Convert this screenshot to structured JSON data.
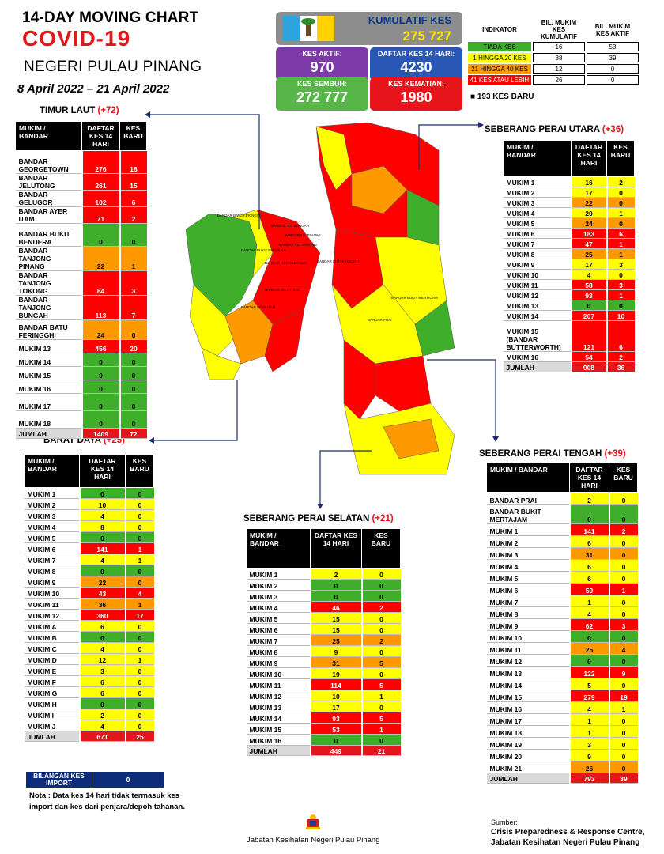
{
  "header": {
    "line1": "14-DAY MOVING CHART",
    "line2": "COVID-19",
    "line3": "NEGERI PULAU PINANG",
    "dates": "8 April 2022 – 21 April 2022"
  },
  "summary": {
    "kumulatif_label": "KUMULATIF KES",
    "kumulatif_value": "275 727",
    "aktif_label": "KES AKTIF:",
    "aktif_value": "970",
    "daftar_label": "DAFTAR KES 14 HARI:",
    "daftar_value": "4230",
    "sembuh_label": "KES SEMBUH:",
    "sembuh_value": "272 777",
    "kematian_label": "KES KEMATIAN:",
    "kematian_value": "1980"
  },
  "legend": {
    "h_indikator": "INDIKATOR",
    "h_kumulatif": "BIL. MUKIM KES KUMULATIF",
    "h_aktif": "BIL. MUKIM KES AKTIF",
    "rows": [
      {
        "label": "TIADA KES",
        "kumulatif": "16",
        "aktif": "53",
        "color": "#3fae2a"
      },
      {
        "label": "1 HINGGA 20 KES",
        "kumulatif": "38",
        "aktif": "39",
        "color": "#ffff00"
      },
      {
        "label": "21 HINGGA 40 KES",
        "kumulatif": "12",
        "aktif": "0",
        "color": "#ff9900"
      },
      {
        "label": "41 KES ATAU LEBIH",
        "kumulatif": "26",
        "aktif": "0",
        "color": "#ff0000"
      }
    ],
    "new_cases": "■  193 KES BARU"
  },
  "colors": {
    "green": "#3fae2a",
    "yellow": "#ffff00",
    "orange": "#ff9900",
    "red": "#ff0000",
    "flag_blue": "#2da4dd",
    "flag_white": "#ffffff",
    "flag_yellow": "#ffd200"
  },
  "columns": {
    "area": "MUKIM / BANDAR",
    "daftar": "DAFTAR KES 14 HARI",
    "baru": "KES BARU",
    "area_nl": "MUKIM /\nBANDAR",
    "daftar_nl": "DAFTAR\nKES 14\nHARI",
    "baru_nl": "KES\nBARU"
  },
  "map_labels": [
    "BANDAR BATU FERINGGI",
    "BANDAR TG. BUNGAH",
    "BANDAR TG. PINANG",
    "BANDAR TG. TOKONG",
    "BANDAR AYER ITAM",
    "BANDAR GEORGETOWN",
    "BANDAR JELUTONG",
    "BANDAR BUTTERWORTH",
    "BANDAR BUKIT MERTAJAM",
    "BANDAR PRAI",
    "BANDAR BUKIT BENDERA"
  ],
  "chart_data": [
    {
      "type": "table",
      "title": "TIMUR LAUT",
      "badge": "(+72)",
      "rows": [
        {
          "area": "BANDAR GEORGETOWN",
          "daftar": "276",
          "baru": "18"
        },
        {
          "area": "BANDAR JELUTONG",
          "daftar": "261",
          "baru": "15"
        },
        {
          "area": "BANDAR GELUGOR",
          "daftar": "102",
          "baru": "6"
        },
        {
          "area": "BANDAR AYER ITAM",
          "daftar": "71",
          "baru": "2"
        },
        {
          "area": "BANDAR BUKIT BENDERA",
          "daftar": "0",
          "baru": "0"
        },
        {
          "area": "BANDAR TANJONG PINANG",
          "daftar": "22",
          "baru": "1"
        },
        {
          "area": "BANDAR TANJONG TOKONG",
          "daftar": "84",
          "baru": "3"
        },
        {
          "area": "BANDAR TANJONG BUNGAH",
          "daftar": "113",
          "baru": "7"
        },
        {
          "area": "BANDAR BATU FERINGGHI",
          "daftar": "24",
          "baru": "0"
        },
        {
          "area": "MUKIM 13",
          "daftar": "456",
          "baru": "20"
        },
        {
          "area": "MUKIM 14",
          "daftar": "0",
          "baru": "0"
        },
        {
          "area": "MUKIM 15",
          "daftar": "0",
          "baru": "0"
        },
        {
          "area": "MUKIM 16",
          "daftar": "0",
          "baru": "0"
        },
        {
          "area": "MUKIM 17",
          "daftar": "0",
          "baru": "0"
        },
        {
          "area": "MUKIM 18",
          "daftar": "0",
          "baru": "0"
        }
      ],
      "total": {
        "area": "JUMLAH",
        "daftar": "1409",
        "baru": "72"
      }
    },
    {
      "type": "table",
      "title": "SEBERANG PERAI UTARA",
      "badge": "(+36)",
      "rows": [
        {
          "area": "MUKIM 1",
          "daftar": "16",
          "baru": "2"
        },
        {
          "area": "MUKIM 2",
          "daftar": "17",
          "baru": "0"
        },
        {
          "area": "MUKIM 3",
          "daftar": "22",
          "baru": "0"
        },
        {
          "area": "MUKIM 4",
          "daftar": "20",
          "baru": "1"
        },
        {
          "area": "MUKIM 5",
          "daftar": "24",
          "baru": "0"
        },
        {
          "area": "MUKIM 6",
          "daftar": "183",
          "baru": "6"
        },
        {
          "area": "MUKIM 7",
          "daftar": "47",
          "baru": "1"
        },
        {
          "area": "MUKIM 8",
          "daftar": "25",
          "baru": "1"
        },
        {
          "area": "MUKIM 9",
          "daftar": "17",
          "baru": "3"
        },
        {
          "area": "MUKIM 10",
          "daftar": "4",
          "baru": "0"
        },
        {
          "area": "MUKIM 11",
          "daftar": "58",
          "baru": "3"
        },
        {
          "area": "MUKIM 12",
          "daftar": "93",
          "baru": "1"
        },
        {
          "area": "MUKIM 13",
          "daftar": "0",
          "baru": "0"
        },
        {
          "area": "MUKIM 14",
          "daftar": "207",
          "baru": "10"
        },
        {
          "area": "MUKIM 15 (BANDAR BUTTERWORTH)",
          "daftar": "121",
          "baru": "6"
        },
        {
          "area": "MUKIM 16",
          "daftar": "54",
          "baru": "2"
        }
      ],
      "total": {
        "area": "JUMLAH",
        "daftar": "908",
        "baru": "36"
      }
    },
    {
      "type": "table",
      "title": "BARAT DAYA",
      "badge": "(+25)",
      "rows": [
        {
          "area": "MUKIM 1",
          "daftar": "0",
          "baru": "0"
        },
        {
          "area": "MUKIM 2",
          "daftar": "10",
          "baru": "0"
        },
        {
          "area": "MUKIM 3",
          "daftar": "4",
          "baru": "0"
        },
        {
          "area": "MUKIM 4",
          "daftar": "8",
          "baru": "0"
        },
        {
          "area": "MUKIM 5",
          "daftar": "0",
          "baru": "0"
        },
        {
          "area": "MUKIM 6",
          "daftar": "141",
          "baru": "1"
        },
        {
          "area": "MUKIM 7",
          "daftar": "4",
          "baru": "1"
        },
        {
          "area": "MUKIM 8",
          "daftar": "0",
          "baru": "0"
        },
        {
          "area": "MUKIM 9",
          "daftar": "22",
          "baru": "0"
        },
        {
          "area": "MUKIM 10",
          "daftar": "43",
          "baru": "4"
        },
        {
          "area": "MUKIM 11",
          "daftar": "36",
          "baru": "1"
        },
        {
          "area": "MUKIM 12",
          "daftar": "360",
          "baru": "17"
        },
        {
          "area": "MUKIM A",
          "daftar": "6",
          "baru": "0"
        },
        {
          "area": "MUKIM B",
          "daftar": "0",
          "baru": "0"
        },
        {
          "area": "MUKIM C",
          "daftar": "4",
          "baru": "0"
        },
        {
          "area": "MUKIM D",
          "daftar": "12",
          "baru": "1"
        },
        {
          "area": "MUKIM E",
          "daftar": "3",
          "baru": "0"
        },
        {
          "area": "MUKIM F",
          "daftar": "6",
          "baru": "0"
        },
        {
          "area": "MUKIM G",
          "daftar": "6",
          "baru": "0"
        },
        {
          "area": "MUKIM H",
          "daftar": "0",
          "baru": "0"
        },
        {
          "area": "MUKIM I",
          "daftar": "2",
          "baru": "0"
        },
        {
          "area": "MUKIM J",
          "daftar": "4",
          "baru": "0"
        }
      ],
      "total": {
        "area": "JUMLAH",
        "daftar": "671",
        "baru": "25"
      }
    },
    {
      "type": "table",
      "title": "SEBERANG PERAI SELATAN",
      "badge": "(+21)",
      "rows": [
        {
          "area": "MUKIM 1",
          "daftar": "2",
          "baru": "0"
        },
        {
          "area": "MUKIM 2",
          "daftar": "0",
          "baru": "0"
        },
        {
          "area": "MUKIM 3",
          "daftar": "0",
          "baru": "0"
        },
        {
          "area": "MUKIM 4",
          "daftar": "46",
          "baru": "2"
        },
        {
          "area": "MUKIM 5",
          "daftar": "15",
          "baru": "0"
        },
        {
          "area": "MUKIM 6",
          "daftar": "15",
          "baru": "0"
        },
        {
          "area": "MUKIM 7",
          "daftar": "25",
          "baru": "2"
        },
        {
          "area": "MUKIM 8",
          "daftar": "9",
          "baru": "0"
        },
        {
          "area": "MUKIM 9",
          "daftar": "31",
          "baru": "5"
        },
        {
          "area": "MUKIM 10",
          "daftar": "19",
          "baru": "0"
        },
        {
          "area": "MUKIM 11",
          "daftar": "114",
          "baru": "5"
        },
        {
          "area": "MUKIM 12",
          "daftar": "10",
          "baru": "1"
        },
        {
          "area": "MUKIM 13",
          "daftar": "17",
          "baru": "0"
        },
        {
          "area": "MUKIM 14",
          "daftar": "93",
          "baru": "5"
        },
        {
          "area": "MUKIM 15",
          "daftar": "53",
          "baru": "1"
        },
        {
          "area": "MUKIM 16",
          "daftar": "0",
          "baru": "0"
        }
      ],
      "total": {
        "area": "JUMLAH",
        "daftar": "449",
        "baru": "21"
      }
    },
    {
      "type": "table",
      "title": "SEBERANG PERAI TENGAH",
      "badge": "(+39)",
      "rows": [
        {
          "area": "BANDAR PRAI",
          "daftar": "2",
          "baru": "0"
        },
        {
          "area": "BANDAR BUKIT MERTAJAM",
          "daftar": "0",
          "baru": "0"
        },
        {
          "area": "MUKIM 1",
          "daftar": "141",
          "baru": "2"
        },
        {
          "area": "MUKIM 2",
          "daftar": "6",
          "baru": "0"
        },
        {
          "area": "MUKIM 3",
          "daftar": "31",
          "baru": "0"
        },
        {
          "area": "MUKIM 4",
          "daftar": "6",
          "baru": "0"
        },
        {
          "area": "MUKIM 5",
          "daftar": "6",
          "baru": "0"
        },
        {
          "area": "MUKIM 6",
          "daftar": "59",
          "baru": "1"
        },
        {
          "area": "MUKIM 7",
          "daftar": "1",
          "baru": "0"
        },
        {
          "area": "MUKIM 8",
          "daftar": "4",
          "baru": "0"
        },
        {
          "area": "MUKIM 9",
          "daftar": "62",
          "baru": "3"
        },
        {
          "area": "MUKIM 10",
          "daftar": "0",
          "baru": "0"
        },
        {
          "area": "MUKIM 11",
          "daftar": "25",
          "baru": "4"
        },
        {
          "area": "MUKIM 12",
          "daftar": "0",
          "baru": "0"
        },
        {
          "area": "MUKIM 13",
          "daftar": "122",
          "baru": "9"
        },
        {
          "area": "MUKIM 14",
          "daftar": "5",
          "baru": "0"
        },
        {
          "area": "MUKIM 15",
          "daftar": "279",
          "baru": "19"
        },
        {
          "area": "MUKIM 16",
          "daftar": "4",
          "baru": "1"
        },
        {
          "area": "MUKIM 17",
          "daftar": "1",
          "baru": "0"
        },
        {
          "area": "MUKIM 18",
          "daftar": "1",
          "baru": "0"
        },
        {
          "area": "MUKIM 19",
          "daftar": "3",
          "baru": "0"
        },
        {
          "area": "MUKIM 20",
          "daftar": "9",
          "baru": "0"
        },
        {
          "area": "MUKIM 21",
          "daftar": "26",
          "baru": "0"
        }
      ],
      "total": {
        "area": "JUMLAH",
        "daftar": "793",
        "baru": "39"
      }
    }
  ],
  "footer": {
    "import_label": "BILANGAN KES IMPORT",
    "import_value": "0",
    "note": "Nota : Data kes 14 hari tidak termasuk kes import dan kes dari penjara/depoh tahanan.",
    "agency": "Jabatan Kesihatan Negeri Pulau Pinang",
    "source_label": "Sumber:",
    "source_line1": "Crisis Preparedness & Response Centre,",
    "source_line2": "Jabatan Kesihatan Negeri Pulau Pinang"
  }
}
